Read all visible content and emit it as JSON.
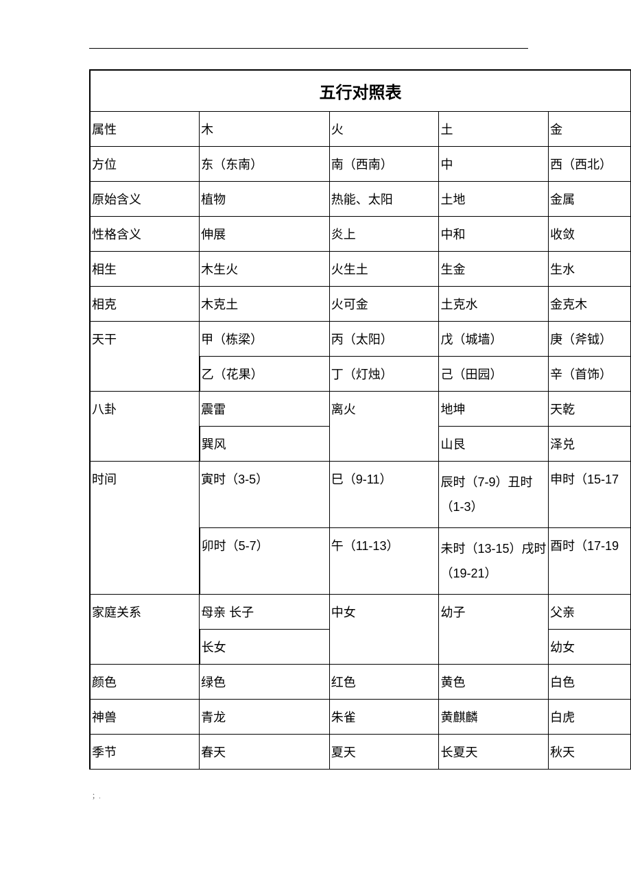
{
  "table": {
    "title": "五行对照表",
    "col_widths": [
      "160px",
      "190px",
      "160px",
      "160px",
      "120px"
    ],
    "rows": [
      {
        "cells": [
          "属性",
          "木",
          "火",
          "土",
          "金"
        ],
        "rowspan": [
          1,
          1,
          1,
          1,
          1
        ]
      },
      {
        "cells": [
          "方位",
          "东（东南）",
          "南（西南）",
          "中",
          "西（西北）"
        ],
        "rowspan": [
          1,
          1,
          1,
          1,
          1
        ]
      },
      {
        "cells": [
          "原始含义",
          "植物",
          "热能、太阳",
          "土地",
          "金属"
        ],
        "rowspan": [
          1,
          1,
          1,
          1,
          1
        ]
      },
      {
        "cells": [
          "性格含义",
          "伸展",
          "炎上",
          "中和",
          "收敛"
        ],
        "rowspan": [
          1,
          1,
          1,
          1,
          1
        ]
      },
      {
        "cells": [
          "相生",
          "木生火",
          "火生土",
          "生金",
          "生水"
        ],
        "rowspan": [
          1,
          1,
          1,
          1,
          1
        ]
      },
      {
        "cells": [
          "相克",
          "木克土",
          "火可金",
          "土克水",
          "金克木"
        ],
        "rowspan": [
          1,
          1,
          1,
          1,
          1
        ]
      },
      {
        "cells": [
          "天干",
          "甲（栋梁）",
          "丙（太阳）",
          "戊（城墙）",
          "庚（斧钺）"
        ],
        "rowspan": [
          2,
          1,
          1,
          1,
          1
        ]
      },
      {
        "cells": [
          "乙（花果）",
          "丁（灯烛）",
          "己（田园）",
          "辛（首饰）"
        ],
        "rowspan": [
          1,
          1,
          1,
          1
        ]
      },
      {
        "cells": [
          "八卦",
          "震雷",
          "离火",
          "地坤",
          "天乾"
        ],
        "rowspan": [
          2,
          1,
          2,
          1,
          1
        ]
      },
      {
        "cells": [
          "巽风",
          "山艮",
          "泽兑"
        ],
        "rowspan": [
          1,
          1,
          1
        ]
      },
      {
        "cells": [
          "时间",
          "寅时（3-5）",
          "巳（9-11）",
          "辰时（7-9）丑时（1-3）",
          "申时（15-17"
        ],
        "rowspan": [
          2,
          1,
          1,
          1,
          1
        ],
        "multiline": [
          false,
          false,
          false,
          true,
          false
        ]
      },
      {
        "cells": [
          "卯时（5-7）",
          "午（11-13）",
          "未时（13-15）戌时（19-21）",
          "酉时（17-19"
        ],
        "rowspan": [
          1,
          1,
          1,
          1
        ],
        "multiline": [
          false,
          false,
          true,
          false
        ]
      },
      {
        "cells": [
          "家庭关系",
          "母亲 长子",
          "中女",
          "幼子",
          "父亲"
        ],
        "rowspan": [
          2,
          1,
          2,
          2,
          1
        ]
      },
      {
        "cells": [
          "长女",
          "幼女"
        ],
        "rowspan": [
          1,
          1
        ]
      },
      {
        "cells": [
          "颜色",
          "绿色",
          "红色",
          "黄色",
          "白色"
        ],
        "rowspan": [
          1,
          1,
          1,
          1,
          1
        ]
      },
      {
        "cells": [
          "神兽",
          "青龙",
          "朱雀",
          "黄麒麟",
          "白虎"
        ],
        "rowspan": [
          1,
          1,
          1,
          1,
          1
        ]
      },
      {
        "cells": [
          "季节",
          "春天",
          "夏天",
          "长夏天",
          "秋天"
        ],
        "rowspan": [
          1,
          1,
          1,
          1,
          1
        ]
      }
    ]
  },
  "footer": "；."
}
